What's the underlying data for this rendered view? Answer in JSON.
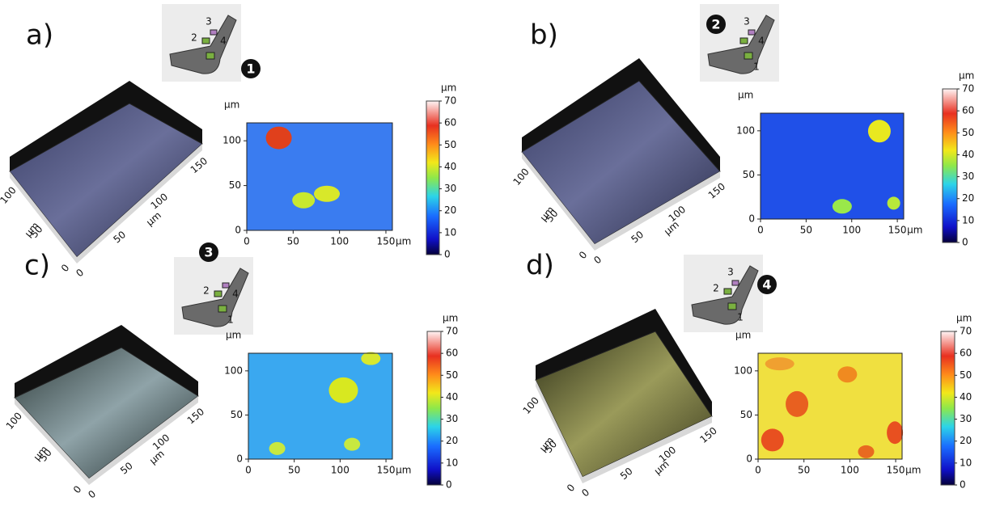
{
  "chart_data": [
    {
      "type": "heatmap",
      "xlim": [
        0,
        157
      ],
      "ylim": [
        0,
        120
      ],
      "xticks": [
        0,
        50,
        100,
        150
      ],
      "yticks": [
        0,
        50,
        100
      ],
      "x_unit": "µm",
      "y_unit": "µm",
      "colorbar": {
        "lim": [
          0,
          70
        ],
        "ticks": [
          0,
          10,
          20,
          30,
          40,
          50,
          60,
          70
        ],
        "unit": "µm"
      }
    },
    {
      "type": "heatmap",
      "xlim": [
        0,
        157
      ],
      "ylim": [
        0,
        120
      ],
      "xticks": [
        0,
        50,
        100,
        150
      ],
      "yticks": [
        0,
        50,
        100
      ],
      "x_unit": "µm",
      "y_unit": "µm",
      "colorbar": {
        "lim": [
          0,
          70
        ],
        "ticks": [
          0,
          10,
          20,
          30,
          40,
          50,
          60,
          70
        ],
        "unit": "µm"
      }
    },
    {
      "type": "heatmap",
      "xlim": [
        0,
        157
      ],
      "ylim": [
        0,
        120
      ],
      "xticks": [
        0,
        50,
        100,
        150
      ],
      "yticks": [
        0,
        50,
        100
      ],
      "x_unit": "µm",
      "y_unit": "µm",
      "colorbar": {
        "lim": [
          0,
          70
        ],
        "ticks": [
          0,
          10,
          20,
          30,
          40,
          50,
          60,
          70
        ],
        "unit": "µm"
      }
    },
    {
      "type": "heatmap",
      "xlim": [
        0,
        157
      ],
      "ylim": [
        0,
        120
      ],
      "xticks": [
        0,
        50,
        100,
        150
      ],
      "yticks": [
        0,
        50,
        100
      ],
      "x_unit": "µm",
      "y_unit": "µm",
      "colorbar": {
        "lim": [
          0,
          70
        ],
        "ticks": [
          0,
          10,
          20,
          30,
          40,
          50,
          60,
          70
        ],
        "unit": "µm"
      }
    }
  ],
  "panels": [
    {
      "label": "a)",
      "probe_marker": "1",
      "probe_numbers": [
        "2",
        "3",
        "4"
      ],
      "surface_view": {
        "side_ticks": [
          "0",
          "50",
          "100"
        ],
        "front_ticks": [
          "0",
          "50",
          "100",
          "150"
        ],
        "unit": "µm"
      }
    },
    {
      "label": "b)",
      "probe_marker": "2",
      "probe_numbers": [
        "1",
        "3",
        "4"
      ],
      "surface_view": {
        "side_ticks": [
          "0",
          "50",
          "100"
        ],
        "front_ticks": [
          "0",
          "50",
          "100",
          "150"
        ],
        "unit": "µm"
      }
    },
    {
      "label": "c)",
      "probe_marker": "3",
      "probe_numbers": [
        "1",
        "2",
        "4"
      ],
      "surface_view": {
        "side_ticks": [
          "0",
          "50",
          "100"
        ],
        "front_ticks": [
          "0",
          "50",
          "100",
          "150"
        ],
        "unit": "µm"
      }
    },
    {
      "label": "d)",
      "probe_marker": "4",
      "probe_numbers": [
        "1",
        "2",
        "3"
      ],
      "surface_view": {
        "side_ticks": [
          "0",
          "50",
          "100"
        ],
        "front_ticks": [
          "0",
          "50",
          "100",
          "150"
        ],
        "unit": "µm"
      }
    }
  ]
}
